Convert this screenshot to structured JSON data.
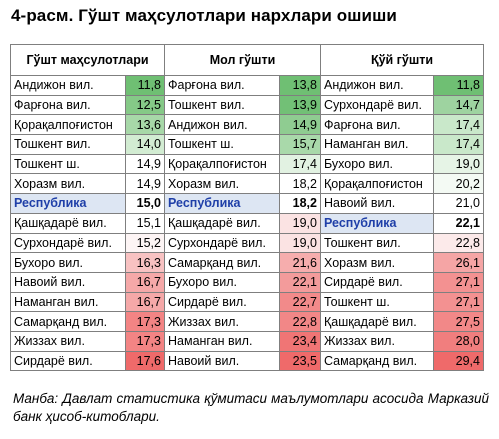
{
  "title": "4-расм. Гўшт маҳсулотлари нархлари ошиши",
  "headers": [
    "Гўшт маҳсулотлари",
    "Мол гўшти",
    "Қўй гўшти"
  ],
  "columns": [
    [
      {
        "region": "Андижон вил.",
        "value": "11,8",
        "color": "#6fbf73"
      },
      {
        "region": "Фарғона вил.",
        "value": "12,5",
        "color": "#85c987"
      },
      {
        "region": "Қорақалпоғистон",
        "value": "13,6",
        "color": "#a7d8a8"
      },
      {
        "region": "Тошкент вил.",
        "value": "14,0",
        "color": "#d2ecd2"
      },
      {
        "region": "Тошкент ш.",
        "value": "14,9",
        "color": "#ffffff"
      },
      {
        "region": "Хоразм вил.",
        "value": "14,9",
        "color": "#ffffff"
      },
      {
        "region": "Республика",
        "value": "15,0",
        "color": "#ffffff",
        "rep": true
      },
      {
        "region": "Қашқадарё вил.",
        "value": "15,1",
        "color": "#ffffff"
      },
      {
        "region": "Сурхондарё вил.",
        "value": "15,2",
        "color": "#fdf5f5"
      },
      {
        "region": "Бухоро вил.",
        "value": "16,3",
        "color": "#f8c2c2"
      },
      {
        "region": "Навоий вил.",
        "value": "16,7",
        "color": "#f5a8a8"
      },
      {
        "region": "Наманган вил.",
        "value": "16,7",
        "color": "#f5a8a8"
      },
      {
        "region": "Самарқанд вил.",
        "value": "17,3",
        "color": "#f38484"
      },
      {
        "region": "Жиззах вил.",
        "value": "17,3",
        "color": "#f38484"
      },
      {
        "region": "Сирдарё вил.",
        "value": "17,6",
        "color": "#ef6a6a"
      }
    ],
    [
      {
        "region": "Фарғона вил.",
        "value": "13,8",
        "color": "#6fbf73"
      },
      {
        "region": "Тошкент вил.",
        "value": "13,9",
        "color": "#72c076"
      },
      {
        "region": "Андижон вил.",
        "value": "14,9",
        "color": "#8fcc91"
      },
      {
        "region": "Тошкент ш.",
        "value": "15,7",
        "color": "#a9d9aa"
      },
      {
        "region": "Қорақалпоғистон",
        "value": "17,4",
        "color": "#e2f2e2"
      },
      {
        "region": "Хоразм вил.",
        "value": "18,2",
        "color": "#ffffff"
      },
      {
        "region": "Республика",
        "value": "18,2",
        "color": "#ffffff",
        "rep": true
      },
      {
        "region": "Қашқадарё вил.",
        "value": "19,0",
        "color": "#fbe3e3"
      },
      {
        "region": "Сурхондарё вил.",
        "value": "19,0",
        "color": "#fbe3e3"
      },
      {
        "region": "Самарқанд вил.",
        "value": "21,6",
        "color": "#f6adad"
      },
      {
        "region": "Бухоро вил.",
        "value": "22,1",
        "color": "#f39b9b"
      },
      {
        "region": "Сирдарё вил.",
        "value": "22,7",
        "color": "#f28a8a"
      },
      {
        "region": "Жиззах вил.",
        "value": "22,8",
        "color": "#f28787"
      },
      {
        "region": "Наманган вил.",
        "value": "23,4",
        "color": "#f07575"
      },
      {
        "region": "Навоий вил.",
        "value": "23,5",
        "color": "#ef6a6a"
      }
    ],
    [
      {
        "region": "Андижон вил.",
        "value": "11,8",
        "color": "#6fbf73"
      },
      {
        "region": "Сурхондарё вил.",
        "value": "14,7",
        "color": "#9ed3a0"
      },
      {
        "region": "Фарғона вил.",
        "value": "17,4",
        "color": "#c9e8ca"
      },
      {
        "region": "Наманган вил.",
        "value": "17,4",
        "color": "#c9e8ca"
      },
      {
        "region": "Бухоро вил.",
        "value": "19,0",
        "color": "#e6f4e6"
      },
      {
        "region": "Қорақалпоғистон",
        "value": "20,2",
        "color": "#f4faf4"
      },
      {
        "region": "Навоий вил.",
        "value": "21,0",
        "color": "#ffffff"
      },
      {
        "region": "Республика",
        "value": "22,1",
        "color": "#ffffff",
        "rep": true
      },
      {
        "region": "Тошкент вил.",
        "value": "22,8",
        "color": "#fceaea"
      },
      {
        "region": "Хоразм вил.",
        "value": "26,1",
        "color": "#f5a5a5"
      },
      {
        "region": "Сирдарё вил.",
        "value": "27,1",
        "color": "#f39191"
      },
      {
        "region": "Тошкент ш.",
        "value": "27,1",
        "color": "#f39191"
      },
      {
        "region": "Қашқадарё вил.",
        "value": "27,5",
        "color": "#f28888"
      },
      {
        "region": "Жиззах вил.",
        "value": "28,0",
        "color": "#f17e7e"
      },
      {
        "region": "Самарқанд вил.",
        "value": "29,4",
        "color": "#ef6a6a"
      }
    ]
  ],
  "source": "Манба: Давлат статистика қўмитаси маълумотлари асосида Марказий банк ҳисоб-китоблари."
}
